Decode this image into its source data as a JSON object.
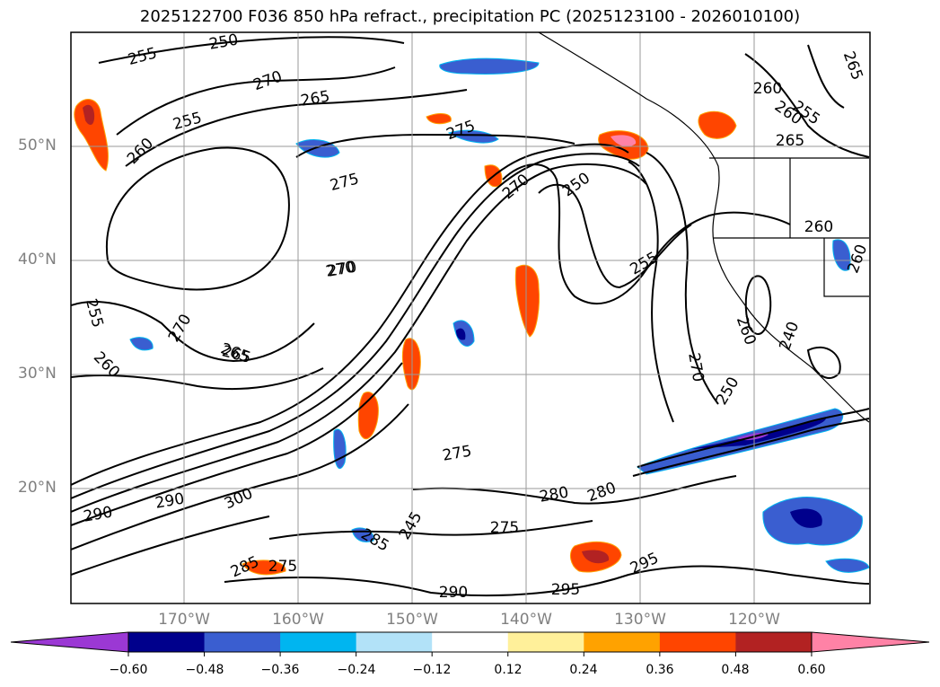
{
  "title": "2025122700 F036 850 hPa refract., precipitation PC (2025123100 - 2026010100)",
  "colors": {
    "frame": "#000000",
    "grid": "#9a9a9a",
    "coast": "#000000",
    "axis_label": "#808080"
  },
  "map": {
    "lat_labels": [
      "50°N",
      "40°N",
      "30°N",
      "20°N"
    ],
    "lon_labels": [
      "170°W",
      "160°W",
      "150°W",
      "140°W",
      "130°W",
      "120°W"
    ]
  },
  "contours": {
    "labels": [
      "255",
      "250",
      "270",
      "265",
      "255",
      "260",
      "275",
      "275",
      "270",
      "270",
      "265",
      "260",
      "255",
      "260",
      "265",
      "270",
      "250",
      "260",
      "255",
      "265",
      "260",
      "255",
      "275",
      "270",
      "260",
      "240",
      "250",
      "245",
      "280",
      "275",
      "285",
      "290",
      "295",
      "300",
      "290",
      "290",
      "285",
      "295",
      "275",
      "280",
      "270",
      "265",
      "260"
    ]
  },
  "colorbar": {
    "tick_labels": [
      "−0.60",
      "−0.48",
      "−0.36",
      "−0.24",
      "−0.12",
      "0.12",
      "0.24",
      "0.36",
      "0.48",
      "0.60"
    ],
    "colors": [
      "#9b38d4",
      "#00008c",
      "#3a5ed0",
      "#00b5f0",
      "#b2e2f8",
      "#ffffff",
      "#fff09a",
      "#ffa200",
      "#ff4500",
      "#b22222",
      "#ff82a6"
    ]
  },
  "chart_data": {
    "type": "heatmap",
    "title": "2025122700 F036 850 hPa refract., precipitation PC (2025123100 - 2026010100)",
    "x_ticks": [
      "170°W",
      "160°W",
      "150°W",
      "140°W",
      "130°W",
      "120°W"
    ],
    "y_ticks": [
      "50°N",
      "40°N",
      "30°N",
      "20°N"
    ],
    "lon_range": [
      -180,
      -110
    ],
    "lat_range": [
      10,
      60
    ],
    "contour_variable": "850 hPa refractivity",
    "contour_levels_labeled": [
      240,
      245,
      250,
      255,
      260,
      265,
      270,
      275,
      280,
      285,
      290,
      295,
      300
    ],
    "shading_variable": "precipitation PC",
    "shading_levels": [
      -0.6,
      -0.48,
      -0.36,
      -0.24,
      -0.12,
      0.12,
      0.24,
      0.36,
      0.48,
      0.6
    ],
    "colorbar_extend": "both"
  }
}
